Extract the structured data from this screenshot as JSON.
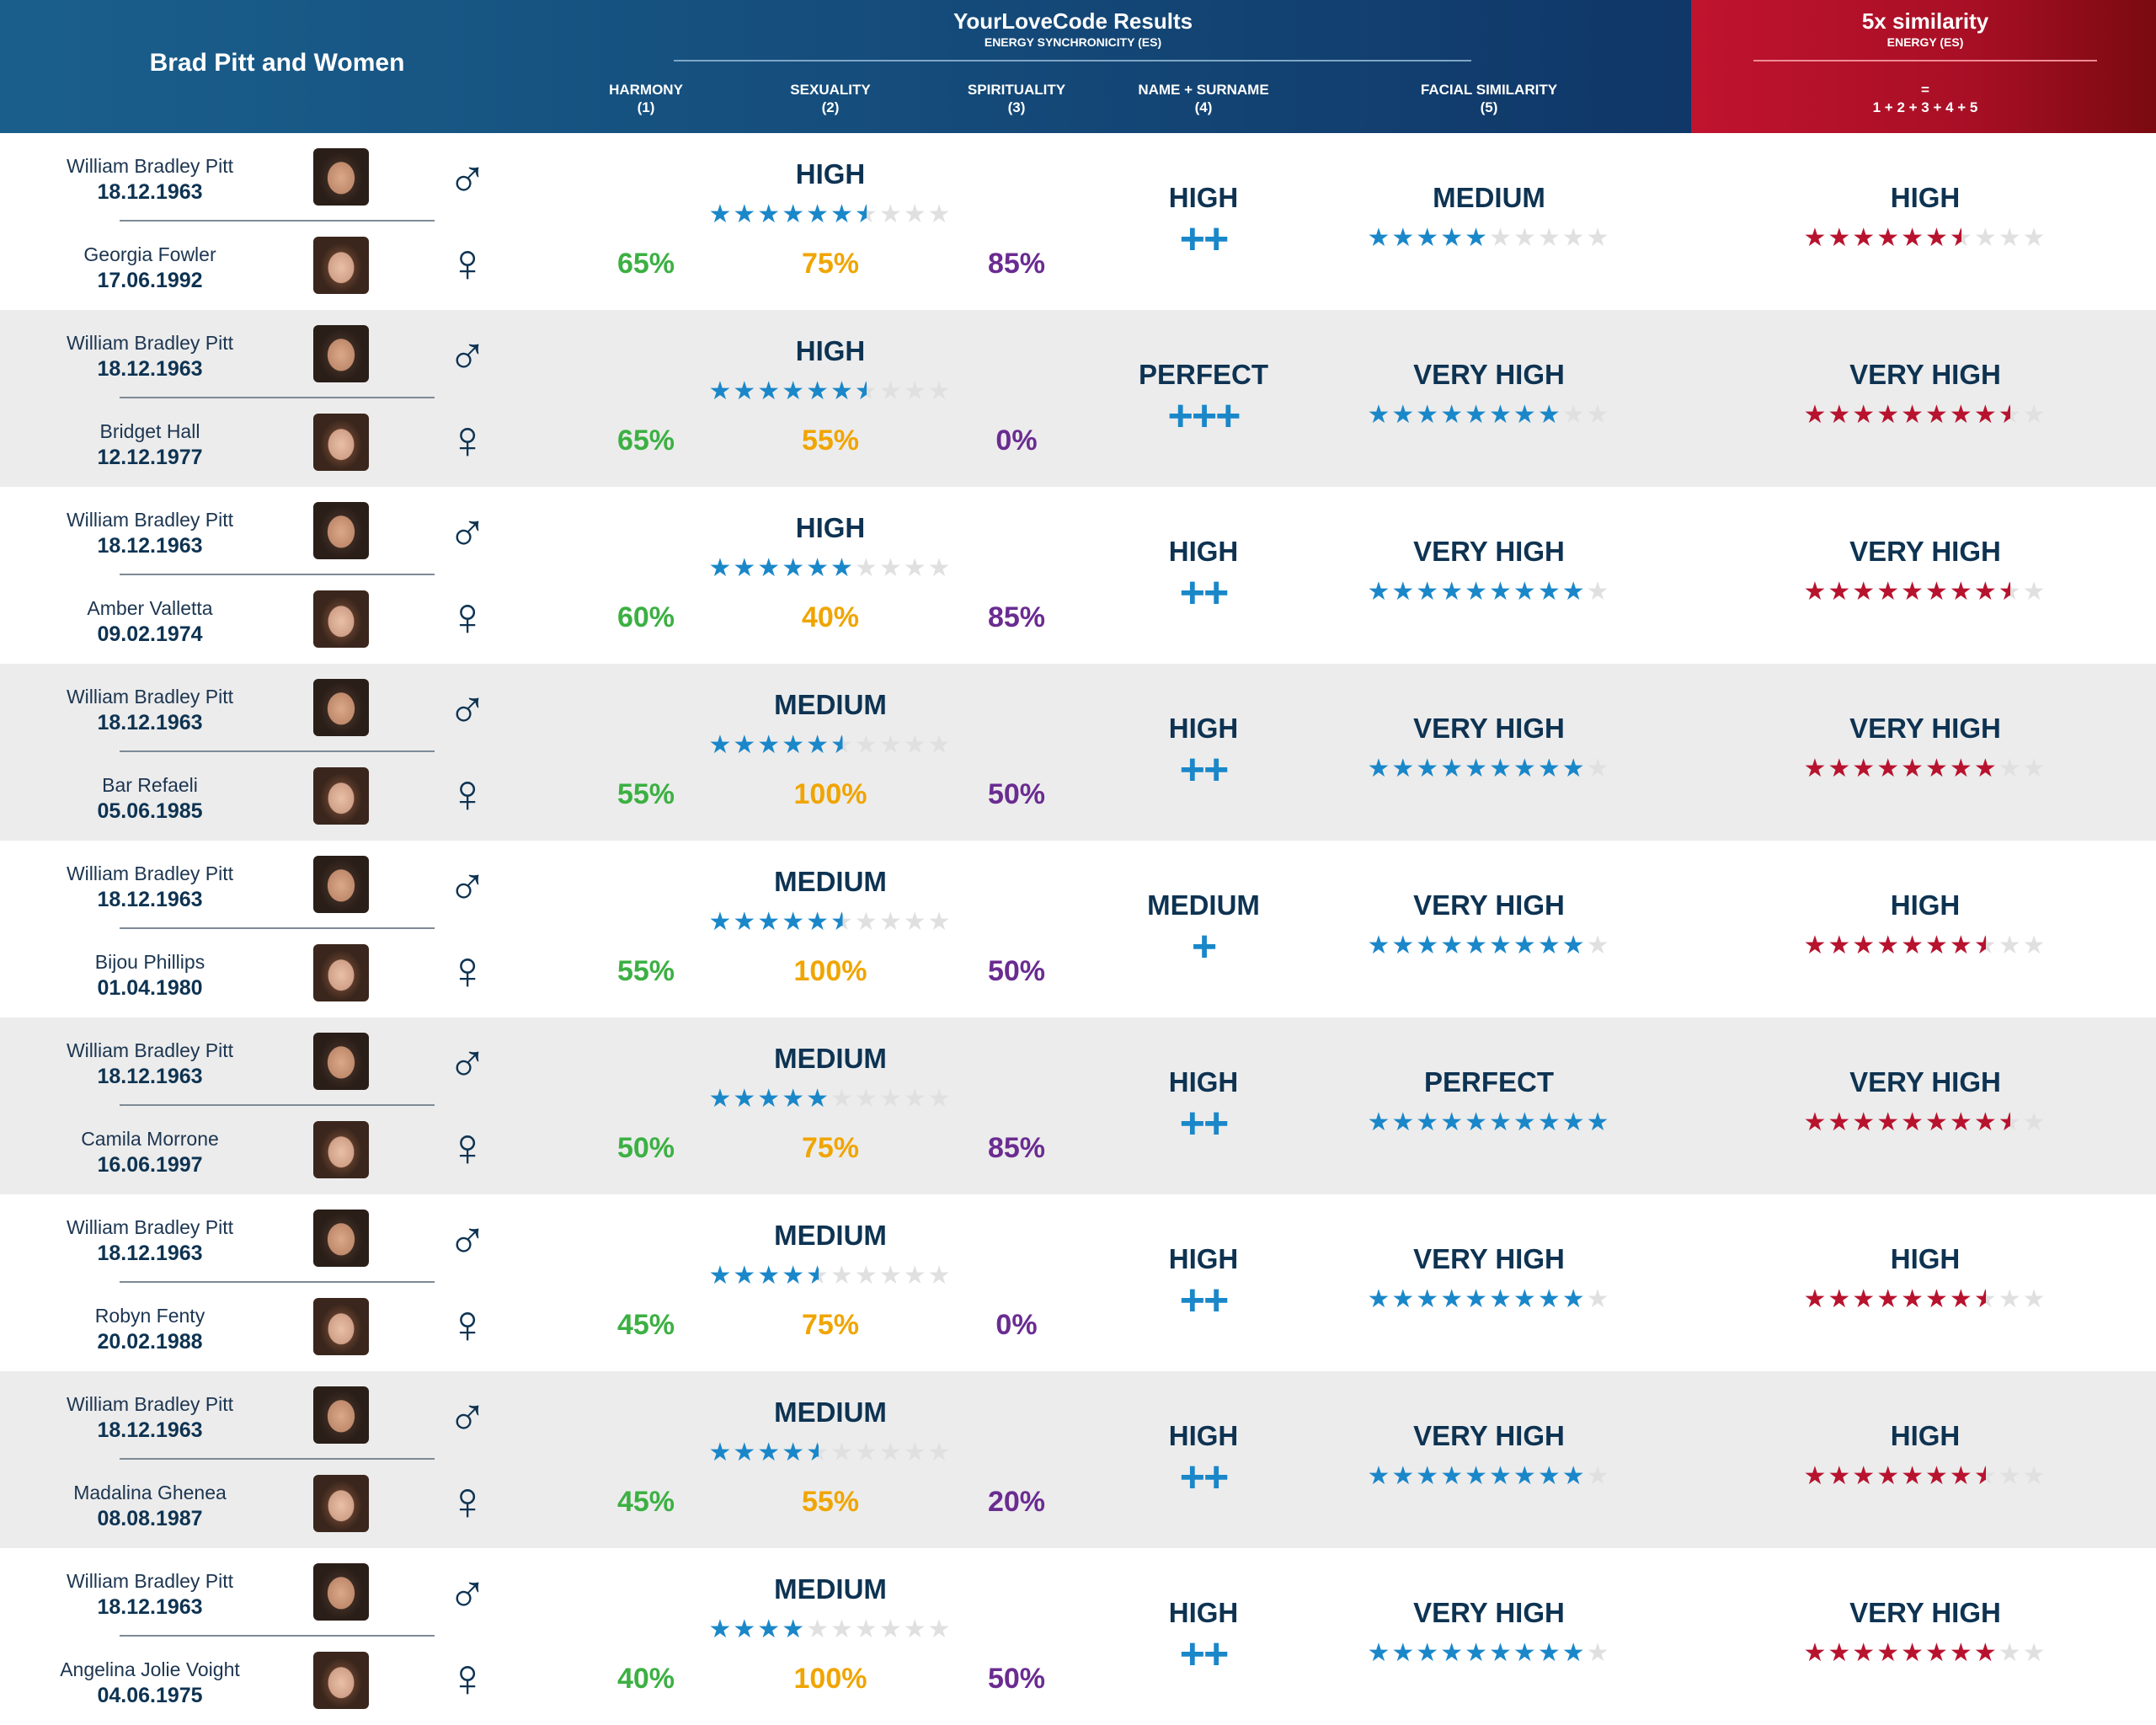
{
  "header": {
    "title": "Brad Pitt and Women",
    "results_title": "YourLoveCode Results",
    "results_subtitle": "ENERGY SYNCHRONICITY (ES)",
    "columns": [
      {
        "name": "HARMONY",
        "num": "(1)"
      },
      {
        "name": "SEXUALITY",
        "num": "(2)"
      },
      {
        "name": "SPIRITUALITY",
        "num": "(3)"
      },
      {
        "name": "NAME + SURNAME",
        "num": "(4)"
      },
      {
        "name": "FACIAL SIMILARITY",
        "num": "(5)"
      }
    ],
    "similarity_title": "5x similarity",
    "similarity_subtitle": "ENERGY (ES)",
    "similarity_eq": "=",
    "similarity_formula": "1 + 2 + 3 + 4 + 5"
  },
  "colors": {
    "navy": "#0e3352",
    "star_blue": "#1a87c9",
    "star_red": "#b8132e",
    "star_empty": "#e0e0e0",
    "harmony": "#3cb043",
    "sexuality": "#f0a500",
    "spirituality": "#6a2c91"
  },
  "symbols": {
    "male": "♂",
    "female": "♀"
  },
  "rows": [
    {
      "man": {
        "name": "William Bradley Pitt",
        "date": "18.12.1963"
      },
      "woman": {
        "name": "Georgia Fowler",
        "date": "17.06.1992"
      },
      "harmony": "65%",
      "sexuality": "75%",
      "spirituality": "85%",
      "es": {
        "label": "HIGH",
        "stars": 6.5
      },
      "name_surname": {
        "label": "HIGH",
        "plus": "++"
      },
      "facial": {
        "label": "MEDIUM",
        "stars": 5
      },
      "total": {
        "label": "HIGH",
        "stars": 6.5
      }
    },
    {
      "man": {
        "name": "William Bradley Pitt",
        "date": "18.12.1963"
      },
      "woman": {
        "name": "Bridget Hall",
        "date": "12.12.1977"
      },
      "harmony": "65%",
      "sexuality": "55%",
      "spirituality": "0%",
      "es": {
        "label": "HIGH",
        "stars": 6.5
      },
      "name_surname": {
        "label": "PERFECT",
        "plus": "+++"
      },
      "facial": {
        "label": "VERY HIGH",
        "stars": 8
      },
      "total": {
        "label": "VERY HIGH",
        "stars": 8.5
      }
    },
    {
      "man": {
        "name": "William Bradley Pitt",
        "date": "18.12.1963"
      },
      "woman": {
        "name": "Amber Valletta",
        "date": "09.02.1974"
      },
      "harmony": "60%",
      "sexuality": "40%",
      "spirituality": "85%",
      "es": {
        "label": "HIGH",
        "stars": 6
      },
      "name_surname": {
        "label": "HIGH",
        "plus": "++"
      },
      "facial": {
        "label": "VERY HIGH",
        "stars": 9
      },
      "total": {
        "label": "VERY HIGH",
        "stars": 8.5
      }
    },
    {
      "man": {
        "name": "William Bradley Pitt",
        "date": "18.12.1963"
      },
      "woman": {
        "name": "Bar Refaeli",
        "date": "05.06.1985"
      },
      "harmony": "55%",
      "sexuality": "100%",
      "spirituality": "50%",
      "es": {
        "label": "MEDIUM",
        "stars": 5.5
      },
      "name_surname": {
        "label": "HIGH",
        "plus": "++"
      },
      "facial": {
        "label": "VERY HIGH",
        "stars": 9
      },
      "total": {
        "label": "VERY HIGH",
        "stars": 8
      }
    },
    {
      "man": {
        "name": "William Bradley Pitt",
        "date": "18.12.1963"
      },
      "woman": {
        "name": "Bijou Phillips",
        "date": "01.04.1980"
      },
      "harmony": "55%",
      "sexuality": "100%",
      "spirituality": "50%",
      "es": {
        "label": "MEDIUM",
        "stars": 5.5
      },
      "name_surname": {
        "label": "MEDIUM",
        "plus": "+"
      },
      "facial": {
        "label": "VERY HIGH",
        "stars": 9
      },
      "total": {
        "label": "HIGH",
        "stars": 7.5
      }
    },
    {
      "man": {
        "name": "William Bradley Pitt",
        "date": "18.12.1963"
      },
      "woman": {
        "name": "Camila Morrone",
        "date": "16.06.1997"
      },
      "harmony": "50%",
      "sexuality": "75%",
      "spirituality": "85%",
      "es": {
        "label": "MEDIUM",
        "stars": 5
      },
      "name_surname": {
        "label": "HIGH",
        "plus": "++"
      },
      "facial": {
        "label": "PERFECT",
        "stars": 10
      },
      "total": {
        "label": "VERY HIGH",
        "stars": 8.5
      }
    },
    {
      "man": {
        "name": "William Bradley Pitt",
        "date": "18.12.1963"
      },
      "woman": {
        "name": "Robyn Fenty",
        "date": "20.02.1988"
      },
      "harmony": "45%",
      "sexuality": "75%",
      "spirituality": "0%",
      "es": {
        "label": "MEDIUM",
        "stars": 4.5
      },
      "name_surname": {
        "label": "HIGH",
        "plus": "++"
      },
      "facial": {
        "label": "VERY HIGH",
        "stars": 9
      },
      "total": {
        "label": "HIGH",
        "stars": 7.5
      }
    },
    {
      "man": {
        "name": "William Bradley Pitt",
        "date": "18.12.1963"
      },
      "woman": {
        "name": "Madalina Ghenea",
        "date": "08.08.1987"
      },
      "harmony": "45%",
      "sexuality": "55%",
      "spirituality": "20%",
      "es": {
        "label": "MEDIUM",
        "stars": 4.5
      },
      "name_surname": {
        "label": "HIGH",
        "plus": "++"
      },
      "facial": {
        "label": "VERY HIGH",
        "stars": 9
      },
      "total": {
        "label": "HIGH",
        "stars": 7.5
      }
    },
    {
      "man": {
        "name": "William Bradley Pitt",
        "date": "18.12.1963"
      },
      "woman": {
        "name": "Angelina Jolie Voight",
        "date": "04.06.1975"
      },
      "harmony": "40%",
      "sexuality": "100%",
      "spirituality": "50%",
      "es": {
        "label": "MEDIUM",
        "stars": 4
      },
      "name_surname": {
        "label": "HIGH",
        "plus": "++"
      },
      "facial": {
        "label": "VERY HIGH",
        "stars": 9
      },
      "total": {
        "label": "VERY HIGH",
        "stars": 8
      }
    }
  ]
}
